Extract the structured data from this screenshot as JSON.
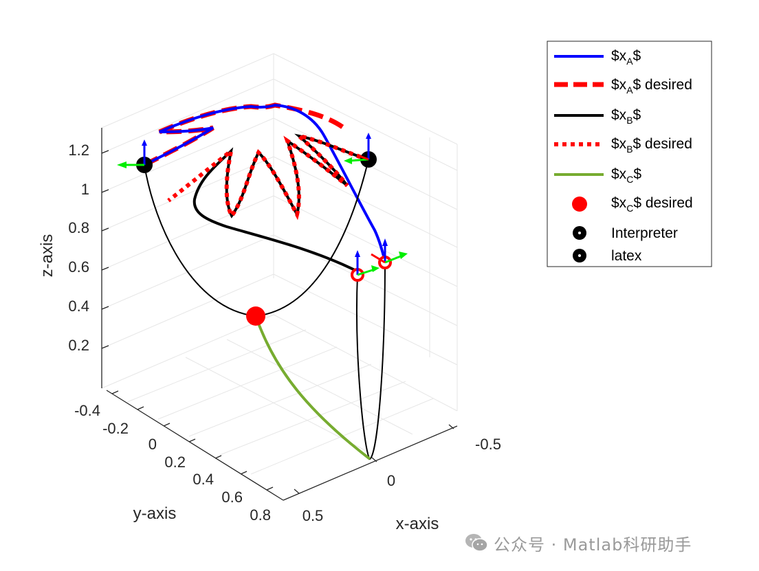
{
  "chart_data": {
    "type": "line",
    "projection": "3d",
    "xlabel": "x-axis",
    "ylabel": "y-axis",
    "zlabel": "z-axis",
    "x_ticks": [
      "-0.5",
      "0",
      "0.5"
    ],
    "y_ticks": [
      "-0.4",
      "-0.2",
      "0",
      "0.2",
      "0.4",
      "0.6",
      "0.8"
    ],
    "z_ticks": [
      "0.2",
      "0.4",
      "0.6",
      "0.8",
      "1",
      "1.2"
    ],
    "zlim": [
      0,
      1.3
    ],
    "grid": true,
    "legend_position": "top-right",
    "legend": [
      {
        "key": "xA",
        "label": "$x_A$",
        "style": "solid",
        "color": "#0000ff"
      },
      {
        "key": "xA_desired",
        "label": "$x_A$ desired",
        "style": "dashed",
        "color": "#ff0000"
      },
      {
        "key": "xB",
        "label": "$x_B$",
        "style": "solid",
        "color": "#000000"
      },
      {
        "key": "xB_desired",
        "label": "$x_B$ desired",
        "style": "dotted",
        "color": "#ff0000"
      },
      {
        "key": "xC",
        "label": "$x_C$",
        "style": "solid",
        "color": "#77ac30"
      },
      {
        "key": "xC_desired",
        "label": "$x_C$ desired",
        "style": "marker",
        "color": "#ff0000"
      },
      {
        "key": "interp",
        "label": "Interpreter",
        "style": "marker",
        "color": "#000000"
      },
      {
        "key": "latex",
        "label": "latex",
        "style": "marker",
        "color": "#000000"
      }
    ],
    "colors": {
      "blue": "#0000ff",
      "red": "#ff0000",
      "black": "#000000",
      "green_line": "#77ac30",
      "green_arrow": "#00ee00",
      "axis": "#262626",
      "grid": "#e6e6e6"
    }
  },
  "watermark": {
    "text": "公众号 · Matlab科研助手"
  }
}
